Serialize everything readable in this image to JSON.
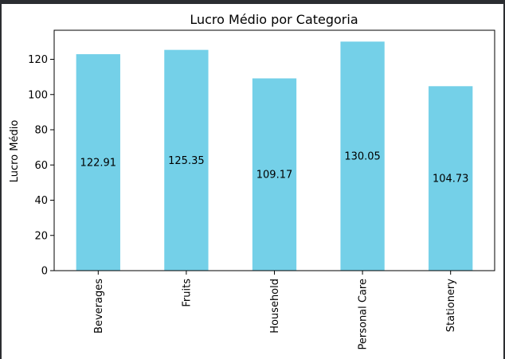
{
  "chart_data": {
    "type": "bar",
    "title": "Lucro Médio por Categoria",
    "xlabel": "",
    "ylabel": "Lucro Médio",
    "categories": [
      "Beverages",
      "Fruits",
      "Household",
      "Personal Care",
      "Stationery"
    ],
    "values": [
      122.91,
      125.35,
      109.17,
      130.05,
      104.73
    ],
    "data_labels": [
      "122.91",
      "125.35",
      "109.17",
      "130.05",
      "104.73"
    ],
    "ylim": [
      0,
      136.5
    ],
    "yticks": [
      0,
      20,
      40,
      60,
      80,
      100,
      120
    ],
    "bar_color": "#74d0e8",
    "grid": false,
    "legend": "none"
  }
}
